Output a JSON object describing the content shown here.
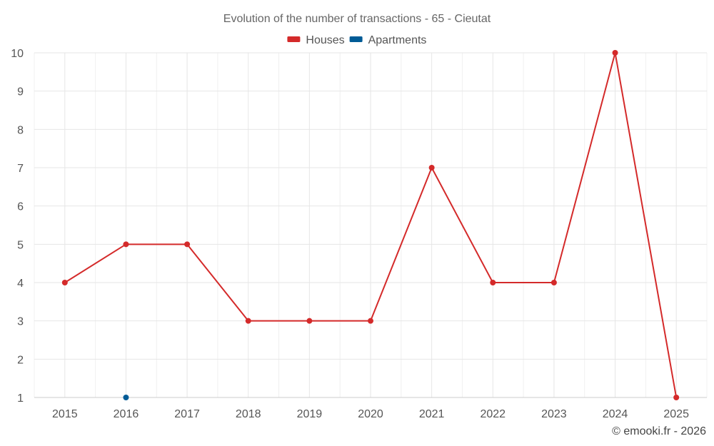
{
  "chart_data": {
    "type": "line",
    "title": "Evolution of the number of transactions - 65 - Cieutat",
    "categories": [
      "2015",
      "2016",
      "2017",
      "2018",
      "2019",
      "2020",
      "2021",
      "2022",
      "2023",
      "2024",
      "2025"
    ],
    "series": [
      {
        "name": "Houses",
        "color": "#d42a2a",
        "values": [
          4,
          5,
          5,
          3,
          3,
          3,
          7,
          4,
          4,
          10,
          1
        ]
      },
      {
        "name": "Apartments",
        "color": "#005b96",
        "values": [
          null,
          1,
          null,
          null,
          null,
          null,
          null,
          null,
          null,
          null,
          null
        ]
      }
    ],
    "y_ticks": [
      "1",
      "2",
      "3",
      "4",
      "5",
      "6",
      "7",
      "8",
      "9",
      "10"
    ],
    "ylim": [
      1,
      10
    ],
    "grid": true,
    "legend_position": "top-center",
    "xlabel": "",
    "ylabel": ""
  },
  "credit": "© emooki.fr - 2026"
}
